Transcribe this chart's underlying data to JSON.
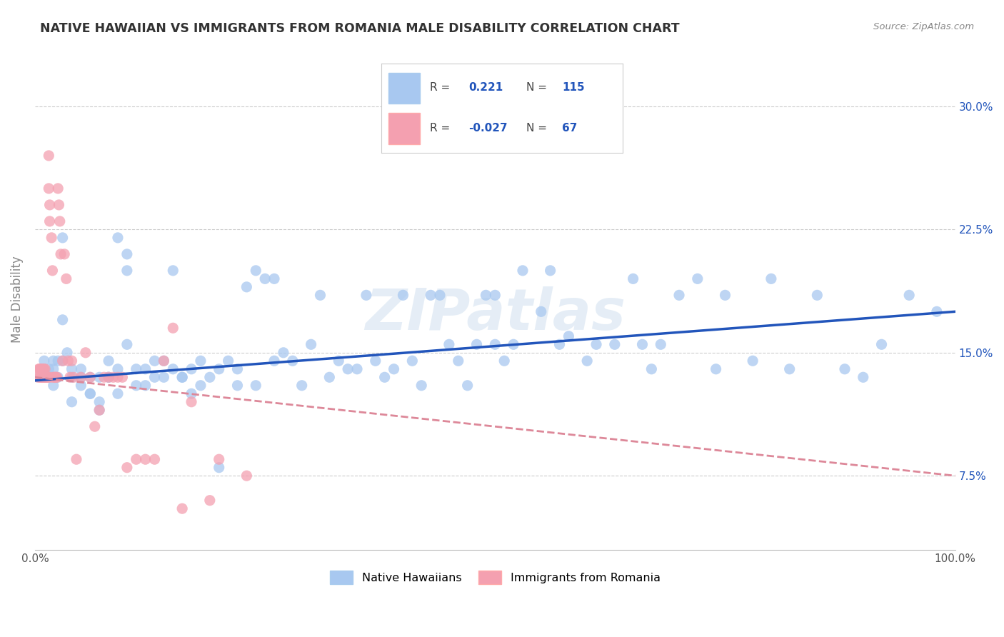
{
  "title": "NATIVE HAWAIIAN VS IMMIGRANTS FROM ROMANIA MALE DISABILITY CORRELATION CHART",
  "source": "Source: ZipAtlas.com",
  "ylabel": "Male Disability",
  "yticks": [
    0.075,
    0.15,
    0.225,
    0.3
  ],
  "ytick_labels": [
    "7.5%",
    "15.0%",
    "22.5%",
    "30.0%"
  ],
  "xmin": 0.0,
  "xmax": 1.0,
  "ymin": 0.03,
  "ymax": 0.335,
  "blue_color": "#A8C8F0",
  "pink_color": "#F4A0B0",
  "blue_line_color": "#2255BB",
  "pink_line_color": "#DD8899",
  "legend1_label": "Native Hawaiians",
  "legend2_label": "Immigrants from Romania",
  "blue_scatter_x": [
    0.01,
    0.01,
    0.015,
    0.015,
    0.02,
    0.02,
    0.02,
    0.025,
    0.025,
    0.03,
    0.03,
    0.035,
    0.04,
    0.04,
    0.05,
    0.05,
    0.06,
    0.06,
    0.07,
    0.07,
    0.08,
    0.08,
    0.09,
    0.09,
    0.1,
    0.1,
    0.11,
    0.12,
    0.13,
    0.14,
    0.15,
    0.16,
    0.17,
    0.18,
    0.19,
    0.2,
    0.21,
    0.22,
    0.23,
    0.24,
    0.25,
    0.26,
    0.27,
    0.28,
    0.29,
    0.3,
    0.31,
    0.32,
    0.33,
    0.34,
    0.35,
    0.36,
    0.37,
    0.38,
    0.39,
    0.4,
    0.41,
    0.42,
    0.43,
    0.44,
    0.45,
    0.46,
    0.47,
    0.48,
    0.49,
    0.5,
    0.5,
    0.51,
    0.52,
    0.53,
    0.55,
    0.56,
    0.57,
    0.58,
    0.6,
    0.61,
    0.62,
    0.63,
    0.65,
    0.66,
    0.67,
    0.68,
    0.7,
    0.72,
    0.74,
    0.75,
    0.78,
    0.8,
    0.82,
    0.85,
    0.88,
    0.9,
    0.92,
    0.95,
    0.98,
    0.03,
    0.04,
    0.05,
    0.06,
    0.07,
    0.08,
    0.09,
    0.1,
    0.11,
    0.12,
    0.13,
    0.14,
    0.15,
    0.16,
    0.17,
    0.18,
    0.2,
    0.22,
    0.24,
    0.26
  ],
  "blue_scatter_y": [
    0.135,
    0.145,
    0.14,
    0.135,
    0.13,
    0.145,
    0.14,
    0.135,
    0.145,
    0.22,
    0.17,
    0.15,
    0.14,
    0.135,
    0.13,
    0.14,
    0.125,
    0.135,
    0.12,
    0.135,
    0.135,
    0.145,
    0.14,
    0.22,
    0.21,
    0.2,
    0.13,
    0.14,
    0.135,
    0.145,
    0.2,
    0.135,
    0.14,
    0.145,
    0.135,
    0.14,
    0.145,
    0.13,
    0.19,
    0.2,
    0.195,
    0.195,
    0.15,
    0.145,
    0.13,
    0.155,
    0.185,
    0.135,
    0.145,
    0.14,
    0.14,
    0.185,
    0.145,
    0.135,
    0.14,
    0.185,
    0.145,
    0.13,
    0.185,
    0.185,
    0.155,
    0.145,
    0.13,
    0.155,
    0.185,
    0.185,
    0.155,
    0.145,
    0.155,
    0.2,
    0.175,
    0.2,
    0.155,
    0.16,
    0.145,
    0.155,
    0.295,
    0.155,
    0.195,
    0.155,
    0.14,
    0.155,
    0.185,
    0.195,
    0.14,
    0.185,
    0.145,
    0.195,
    0.14,
    0.185,
    0.14,
    0.135,
    0.155,
    0.185,
    0.175,
    0.145,
    0.12,
    0.135,
    0.125,
    0.115,
    0.135,
    0.125,
    0.155,
    0.14,
    0.13,
    0.145,
    0.135,
    0.14,
    0.135,
    0.125,
    0.13,
    0.08,
    0.14,
    0.13,
    0.145
  ],
  "pink_scatter_x": [
    0.003,
    0.004,
    0.005,
    0.005,
    0.006,
    0.006,
    0.007,
    0.007,
    0.008,
    0.008,
    0.009,
    0.009,
    0.01,
    0.01,
    0.011,
    0.011,
    0.012,
    0.012,
    0.013,
    0.013,
    0.014,
    0.014,
    0.015,
    0.015,
    0.016,
    0.016,
    0.017,
    0.018,
    0.019,
    0.02,
    0.021,
    0.022,
    0.023,
    0.024,
    0.025,
    0.026,
    0.027,
    0.028,
    0.03,
    0.032,
    0.034,
    0.036,
    0.038,
    0.04,
    0.042,
    0.045,
    0.05,
    0.055,
    0.06,
    0.065,
    0.07,
    0.075,
    0.08,
    0.085,
    0.09,
    0.095,
    0.1,
    0.11,
    0.12,
    0.13,
    0.14,
    0.15,
    0.16,
    0.17,
    0.19,
    0.2,
    0.23
  ],
  "pink_scatter_y": [
    0.135,
    0.14,
    0.135,
    0.14,
    0.14,
    0.135,
    0.135,
    0.14,
    0.14,
    0.135,
    0.135,
    0.14,
    0.135,
    0.14,
    0.135,
    0.14,
    0.135,
    0.135,
    0.135,
    0.135,
    0.135,
    0.135,
    0.27,
    0.25,
    0.24,
    0.23,
    0.135,
    0.22,
    0.2,
    0.135,
    0.135,
    0.135,
    0.135,
    0.135,
    0.25,
    0.24,
    0.23,
    0.21,
    0.145,
    0.21,
    0.195,
    0.145,
    0.135,
    0.145,
    0.135,
    0.085,
    0.135,
    0.15,
    0.135,
    0.105,
    0.115,
    0.135,
    0.135,
    0.135,
    0.135,
    0.135,
    0.08,
    0.085,
    0.085,
    0.085,
    0.145,
    0.165,
    0.055,
    0.12,
    0.06,
    0.085,
    0.075
  ],
  "pink_line_x_end": 1.0,
  "blue_line_start_y": 0.133,
  "blue_line_end_y": 0.175,
  "pink_line_start_y": 0.135,
  "pink_line_end_y": 0.075
}
